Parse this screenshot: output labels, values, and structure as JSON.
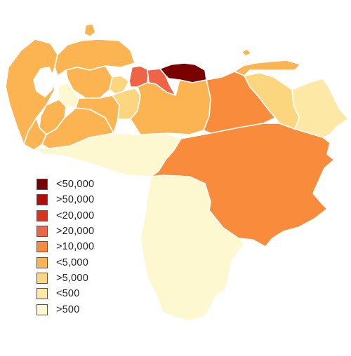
{
  "map": {
    "regions": [
      {
        "name": "Zulia",
        "value_class": "<5,000"
      },
      {
        "name": "Falcón",
        "value_class": "<5,000"
      },
      {
        "name": "Lara",
        "value_class": "<5,000"
      },
      {
        "name": "Yaracuy",
        "value_class": ">5,000"
      },
      {
        "name": "Carabobo",
        "value_class": ">20,000"
      },
      {
        "name": "Aragua",
        "value_class": ">20,000"
      },
      {
        "name": "Capital District",
        "value_class": "<50,000"
      },
      {
        "name": "Miranda",
        "value_class": "<50,000"
      },
      {
        "name": "Guárico",
        "value_class": "<5,000"
      },
      {
        "name": "Anzoátegui",
        "value_class": ">10,000"
      },
      {
        "name": "Monagas",
        "value_class": ">5,000"
      },
      {
        "name": "Sucre",
        "value_class": "<5,000"
      },
      {
        "name": "Delta Amacuro",
        "value_class": "<500"
      },
      {
        "name": "Bolívar",
        "value_class": ">10,000"
      },
      {
        "name": "Amazonas",
        "value_class": ">500"
      },
      {
        "name": "Apure",
        "value_class": ">500"
      },
      {
        "name": "Barinas",
        "value_class": "<5,000"
      },
      {
        "name": "Portuguesa",
        "value_class": "<5,000"
      },
      {
        "name": "Cojedes",
        "value_class": ">5,000"
      },
      {
        "name": "Trujillo",
        "value_class": ">500"
      },
      {
        "name": "Mérida",
        "value_class": "<5,000"
      },
      {
        "name": "Táchira",
        "value_class": "<5,000"
      },
      {
        "name": "Nueva Esparta",
        "value_class": "<5,000"
      }
    ]
  },
  "legend": {
    "items": [
      {
        "label": "<50,000",
        "color": "#7a0000"
      },
      {
        "label": ">50,000",
        "color": "#b30c0c"
      },
      {
        "label": "<20,000",
        "color": "#d9331f"
      },
      {
        "label": ">20,000",
        "color": "#ee6446"
      },
      {
        "label": ">10,000",
        "color": "#f98c3c"
      },
      {
        "label": "<5,000",
        "color": "#fbb451"
      },
      {
        "label": ">5,000",
        "color": "#fcd57f"
      },
      {
        "label": "<500",
        "color": "#fde8a5"
      },
      {
        "label": ">500",
        "color": "#fef8d0"
      }
    ]
  }
}
